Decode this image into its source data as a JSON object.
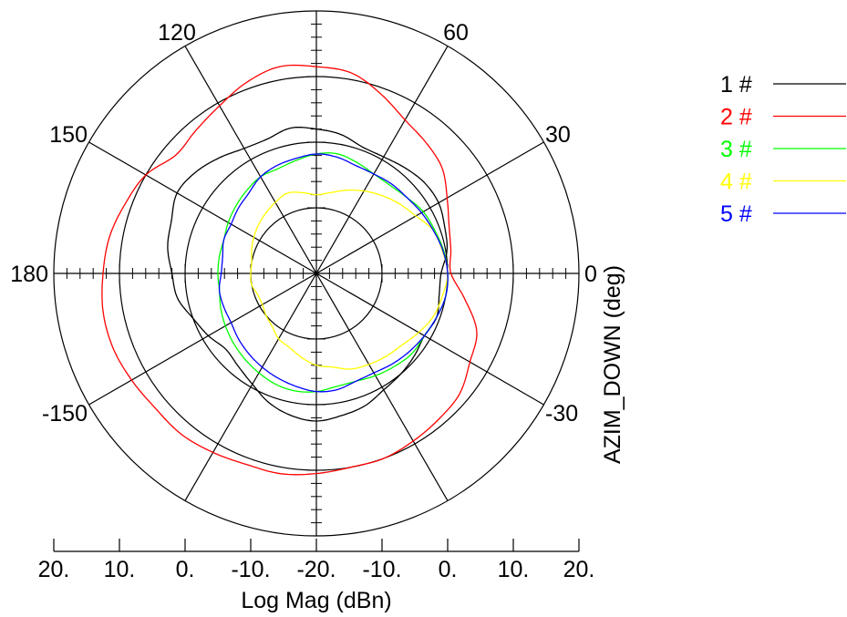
{
  "chart_data": {
    "type": "polar-line",
    "title": "",
    "angle_label": "AZIM_DOWN (deg)",
    "radial_label": "Log Mag (dBn)",
    "angle_ticks": [
      {
        "deg": 0,
        "label": "0"
      },
      {
        "deg": 30,
        "label": "30"
      },
      {
        "deg": 60,
        "label": "60"
      },
      {
        "deg": 120,
        "label": "120"
      },
      {
        "deg": 150,
        "label": "150"
      },
      {
        "deg": 180,
        "label": "180"
      },
      {
        "deg": -150,
        "label": "-150"
      },
      {
        "deg": -30,
        "label": "-30"
      }
    ],
    "radial_range": [
      -20,
      20
    ],
    "radial_rings": [
      -10,
      0,
      10,
      20
    ],
    "radial_tick_labels": [
      "20.",
      "10.",
      "0.",
      "-10.",
      "-20.",
      "-10.",
      "0.",
      "10.",
      "20."
    ],
    "legend_position": "top-right",
    "series": [
      {
        "name": "1 #",
        "color": "#000000",
        "r": [
          -1.0,
          0.2,
          0.8,
          1.5,
          1.5,
          1.0,
          0.5,
          0.5,
          1.5,
          2.0,
          2.5,
          1.8,
          2.0,
          3.0,
          4.0,
          4.5,
          3.5,
          3.0,
          2.0,
          1.5,
          0.0,
          -1.0,
          -2.0,
          -1.5,
          -0.5,
          1.0,
          2.0,
          2.5,
          2.0,
          1.5,
          0.5,
          0.0,
          -0.5,
          -1.0,
          -0.5,
          -1.0
        ]
      },
      {
        "name": "2 #",
        "color": "#ff0000",
        "r": [
          0.5,
          0.8,
          1.5,
          3.0,
          5.0,
          6.0,
          7.0,
          9.0,
          11.0,
          11.5,
          12.0,
          11.0,
          9.5,
          8.5,
          8.0,
          10.0,
          11.0,
          12.0,
          12.5,
          13.0,
          13.0,
          12.5,
          12.0,
          12.0,
          11.5,
          11.0,
          11.0,
          10.5,
          10.0,
          10.0,
          9.5,
          9.0,
          8.5,
          7.0,
          6.0,
          3.0
        ]
      },
      {
        "name": "3 #",
        "color": "#00ff00",
        "r": [
          0.0,
          -0.3,
          -0.8,
          -1.2,
          -2.0,
          -2.5,
          -2.5,
          -2.0,
          -1.5,
          -1.8,
          -2.5,
          -3.0,
          -3.0,
          -3.5,
          -4.0,
          -4.5,
          -5.0,
          -5.0,
          -5.0,
          -5.0,
          -4.5,
          -4.0,
          -3.5,
          -3.0,
          -2.5,
          -2.0,
          -1.8,
          -2.0,
          -2.5,
          -2.5,
          -2.0,
          -1.5,
          -1.0,
          -1.0,
          -0.5,
          0.0
        ]
      },
      {
        "name": "4 #",
        "color": "#ffff00",
        "r": [
          0.0,
          -0.5,
          -1.0,
          -2.5,
          -3.5,
          -4.5,
          -5.5,
          -6.5,
          -7.5,
          -8.0,
          -7.5,
          -7.0,
          -7.5,
          -8.0,
          -8.5,
          -9.0,
          -9.5,
          -10.0,
          -10.0,
          -10.0,
          -10.5,
          -10.5,
          -10.0,
          -9.5,
          -8.5,
          -8.0,
          -7.0,
          -6.0,
          -5.5,
          -4.5,
          -4.0,
          -3.5,
          -3.0,
          -2.0,
          -1.0,
          -0.5
        ]
      },
      {
        "name": "5 #",
        "color": "#0000ff",
        "r": [
          0.0,
          -0.4,
          -1.0,
          -1.5,
          -2.0,
          -2.2,
          -2.5,
          -2.5,
          -2.0,
          -1.8,
          -2.2,
          -2.5,
          -3.0,
          -4.0,
          -4.5,
          -5.0,
          -5.0,
          -5.5,
          -5.5,
          -5.0,
          -5.0,
          -5.0,
          -4.5,
          -4.0,
          -3.5,
          -3.0,
          -2.5,
          -2.0,
          -2.0,
          -2.5,
          -2.5,
          -2.0,
          -1.5,
          -1.0,
          -0.5,
          0.0
        ]
      }
    ]
  }
}
